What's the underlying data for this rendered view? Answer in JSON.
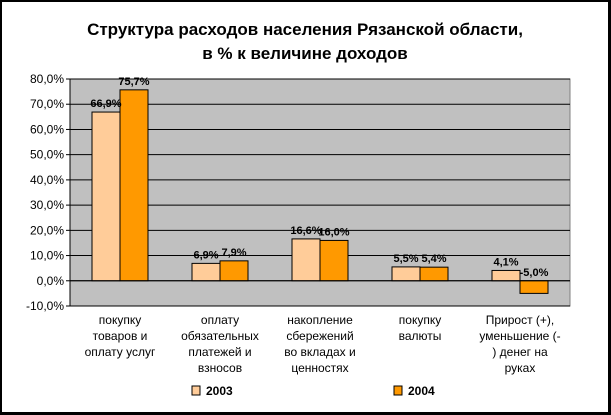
{
  "chart_data": {
    "type": "bar",
    "title": [
      "Структура расходов населения Рязанской области,",
      "в % к величине доходов"
    ],
    "categories": [
      [
        "покупку",
        "товаров и",
        "оплату услуг"
      ],
      [
        "оплату",
        "обязательных",
        "платежей и",
        "взносов"
      ],
      [
        "накопление",
        "сбережений",
        "во вкладах и",
        "ценностях"
      ],
      [
        "покупку",
        "валюты"
      ],
      [
        "Прирост (+),",
        "уменьшение (-",
        ") денег на",
        "руках"
      ]
    ],
    "series": [
      {
        "name": "2003",
        "values": [
          66.9,
          6.9,
          16.6,
          5.5,
          4.1
        ],
        "labels": [
          "66,9%",
          "6,9%",
          "16,6%",
          "5,5%",
          "4,1%"
        ]
      },
      {
        "name": "2004",
        "values": [
          75.7,
          7.9,
          16.0,
          5.4,
          -5.0
        ],
        "labels": [
          "75,7%",
          "7,9%",
          "16,0%",
          "5,4%",
          "-5,0%"
        ]
      }
    ],
    "yticks": [
      "80,0%",
      "70,0%",
      "60,0%",
      "50,0%",
      "40,0%",
      "30,0%",
      "20,0%",
      "10,0%",
      "0,0%",
      "-10,0%"
    ],
    "ylim": [
      -10,
      80
    ],
    "legend_position": "bottom",
    "grid": true
  },
  "colors": {
    "series_2003": "#FFCC99",
    "series_2004": "#FF9900",
    "plot_bg": "#C0C0C0",
    "gridline": "#000000",
    "frame": "#000000"
  }
}
